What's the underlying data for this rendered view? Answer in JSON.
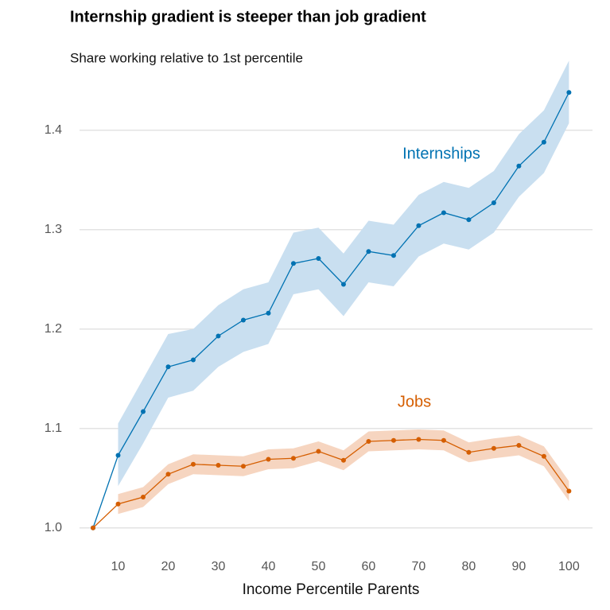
{
  "chart_data": {
    "type": "line",
    "title": "Internship gradient is steeper than job gradient",
    "subtitle": "Share working relative to 1st percentile",
    "x_label": "Income Percentile Parents",
    "x": [
      5,
      10,
      15,
      20,
      25,
      30,
      35,
      40,
      45,
      50,
      55,
      60,
      65,
      70,
      75,
      80,
      85,
      90,
      95,
      100
    ],
    "series": [
      {
        "name": "Internships",
        "color": "#0072b2",
        "band_color": "#c9dff0",
        "values": [
          1.0,
          1.073,
          1.117,
          1.162,
          1.169,
          1.193,
          1.209,
          1.216,
          1.266,
          1.271,
          1.245,
          1.278,
          1.274,
          1.304,
          1.317,
          1.31,
          1.327,
          1.364,
          1.388,
          1.438
        ],
        "upper": [
          null,
          1.105,
          1.15,
          1.195,
          1.2,
          1.224,
          1.24,
          1.247,
          1.297,
          1.302,
          1.276,
          1.309,
          1.305,
          1.335,
          1.348,
          1.342,
          1.359,
          1.396,
          1.42,
          1.47
        ],
        "lower": [
          null,
          1.042,
          1.085,
          1.131,
          1.138,
          1.162,
          1.177,
          1.185,
          1.235,
          1.24,
          1.213,
          1.247,
          1.243,
          1.273,
          1.286,
          1.28,
          1.297,
          1.333,
          1.357,
          1.407
        ]
      },
      {
        "name": "Jobs",
        "color": "#d55e00",
        "band_color": "#f6d5c0",
        "values": [
          1.0,
          1.024,
          1.031,
          1.054,
          1.064,
          1.063,
          1.062,
          1.069,
          1.07,
          1.077,
          1.068,
          1.087,
          1.088,
          1.089,
          1.088,
          1.076,
          1.08,
          1.083,
          1.072,
          1.037
        ],
        "upper": [
          null,
          1.034,
          1.041,
          1.064,
          1.074,
          1.073,
          1.072,
          1.079,
          1.08,
          1.087,
          1.078,
          1.097,
          1.098,
          1.099,
          1.098,
          1.086,
          1.09,
          1.093,
          1.082,
          1.047
        ],
        "lower": [
          null,
          1.014,
          1.021,
          1.044,
          1.054,
          1.053,
          1.052,
          1.059,
          1.06,
          1.067,
          1.058,
          1.077,
          1.078,
          1.079,
          1.078,
          1.066,
          1.07,
          1.073,
          1.062,
          1.027
        ]
      }
    ],
    "xlim": [
      2.3,
      104.7
    ],
    "ylim": [
      0.987,
      1.451
    ],
    "xticks": [
      10,
      20,
      30,
      40,
      50,
      60,
      70,
      80,
      90,
      100
    ],
    "yticks": [
      {
        "value": 1,
        "label": "1.0"
      },
      1.1,
      1.2,
      1.3,
      1.4
    ],
    "grid": true
  }
}
